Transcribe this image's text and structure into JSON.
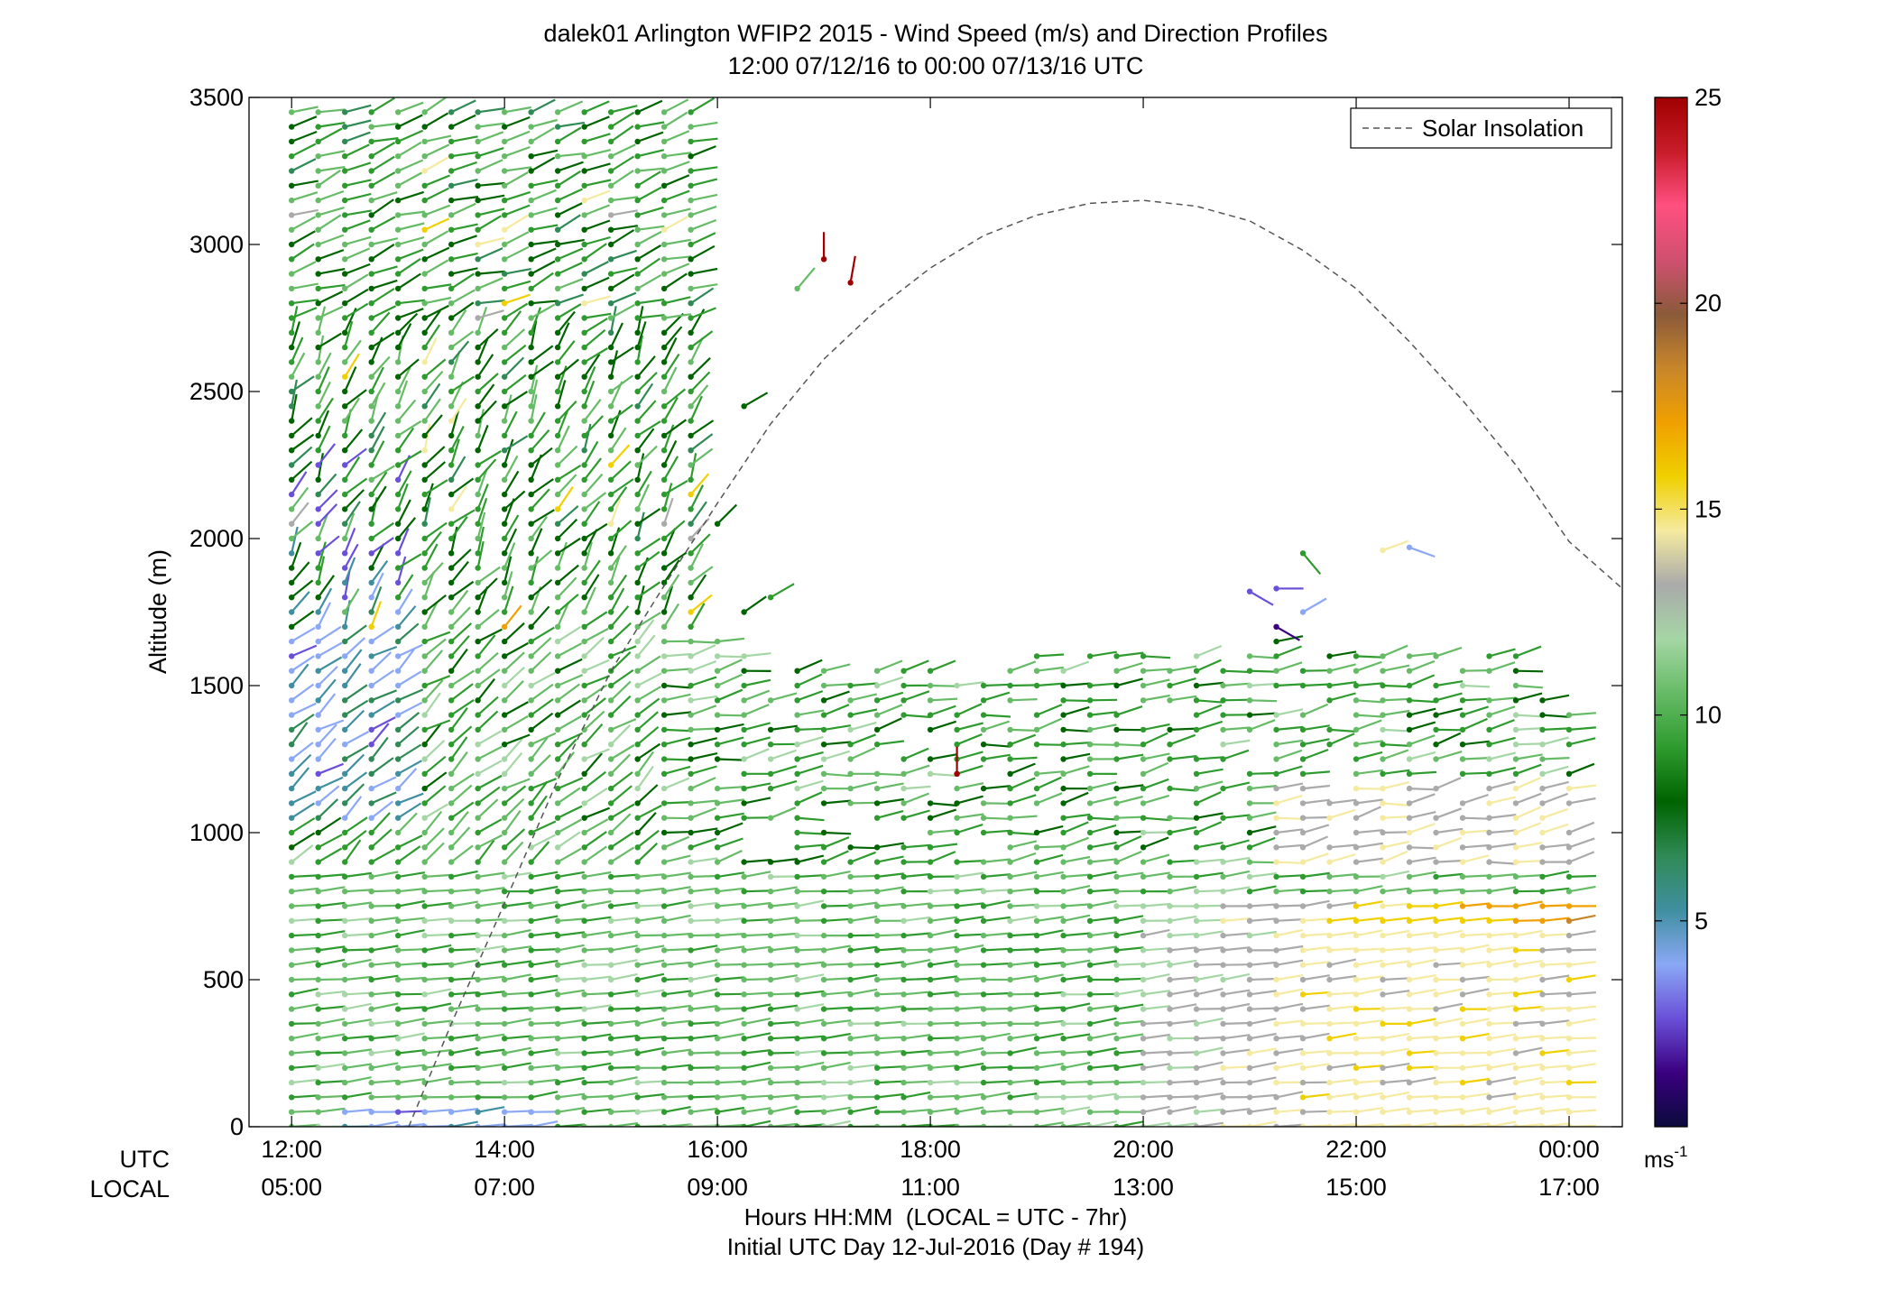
{
  "chart_data": {
    "type": "scatter",
    "title": "dalek01 Arlington WFIP2 2015 - Wind Speed (m/s) and Direction Profiles",
    "subtitle": "12:00 07/12/16 to 00:00 07/13/16  UTC",
    "ylabel": "Altitude (m)",
    "ylim": [
      0,
      3500
    ],
    "yticks": [
      0,
      500,
      1000,
      1500,
      2000,
      2500,
      3000,
      3500
    ],
    "xlim": [
      11.6,
      24.5
    ],
    "xticks_hours": [
      12,
      14,
      16,
      18,
      20,
      22,
      24
    ],
    "xtick_utc_labels": [
      "12:00",
      "14:00",
      "16:00",
      "18:00",
      "20:00",
      "22:00",
      "00:00"
    ],
    "xtick_local_labels": [
      "05:00",
      "07:00",
      "09:00",
      "11:00",
      "13:00",
      "15:00",
      "17:00"
    ],
    "utc_row_label": "UTC",
    "local_row_label": "LOCAL",
    "xlabel": "Hours HH:MM  (LOCAL = UTC - 7hr)",
    "xlabel2": "Initial UTC Day 12-Jul-2016 (Day # 194)",
    "legend": {
      "label": "Solar Insolation",
      "placement": "top-right",
      "line_color": "#555555"
    },
    "colorbar": {
      "min": 0,
      "max": 25,
      "ticks": [
        5,
        10,
        15,
        20,
        25
      ],
      "unit_label": "ms",
      "unit_exponent": "-1",
      "colors": [
        "#0a0a3c",
        "#3a0080",
        "#6a50d8",
        "#8aa8f5",
        "#3f8fa0",
        "#2f8a55",
        "#006400",
        "#2e9b2e",
        "#66bb66",
        "#a5d6a5",
        "#aaaaaa",
        "#f5eaa0",
        "#f0d000",
        "#f0a000",
        "#c8862a",
        "#8a5a3a",
        "#d05070",
        "#ff5080",
        "#c81c2a",
        "#a00000"
      ]
    },
    "solar_insolation_curve": {
      "x_hours": [
        13.1,
        13.5,
        14.0,
        14.5,
        15.0,
        15.5,
        16.0,
        16.5,
        17.0,
        17.5,
        18.0,
        18.5,
        19.0,
        19.5,
        20.0,
        20.5,
        21.0,
        21.5,
        22.0,
        22.5,
        23.0,
        23.5,
        24.0,
        24.5
      ],
      "y_m": [
        0,
        350,
        760,
        1180,
        1550,
        1840,
        2120,
        2390,
        2610,
        2780,
        2920,
        3030,
        3100,
        3140,
        3150,
        3130,
        3080,
        2980,
        2850,
        2670,
        2470,
        2250,
        1990,
        1830
      ]
    },
    "barbs_note": "Profiles every 15 min; barbs point toward the wind direction, colour encodes speed",
    "profile_times_hours": [
      12.0,
      12.25,
      12.5,
      12.75,
      13.0,
      13.25,
      13.5,
      13.75,
      14.0,
      14.25,
      14.5,
      14.75,
      15.0,
      15.25,
      15.5,
      15.75,
      16.0,
      16.25,
      16.5,
      16.75,
      17.0,
      17.25,
      17.5,
      17.75,
      18.0,
      18.25,
      18.5,
      18.75,
      19.0,
      19.25,
      19.5,
      19.75,
      20.0,
      20.25,
      20.5,
      20.75,
      21.0,
      21.25,
      21.5,
      21.75,
      22.0,
      22.25,
      22.5,
      22.75,
      23.0,
      23.25,
      23.5,
      23.75,
      24.0
    ],
    "profile_top_altitude_m": [
      3450,
      3450,
      3450,
      3450,
      3450,
      3450,
      3450,
      3450,
      3450,
      3450,
      3450,
      3450,
      3450,
      3450,
      3450,
      3450,
      1650,
      1600,
      1550,
      1600,
      1550,
      1520,
      1550,
      1550,
      1550,
      1520,
      1550,
      1550,
      1600,
      1550,
      1600,
      1600,
      1600,
      1600,
      1600,
      1620,
      1620,
      1650,
      1620,
      1620,
      1620,
      1620,
      1620,
      1620,
      1620,
      1620,
      1600,
      1450,
      1400
    ],
    "isolated_barbs": [
      {
        "x": 16.0,
        "y": 2050,
        "speed": 8,
        "dir_deg": 225
      },
      {
        "x": 16.25,
        "y": 2450,
        "speed": 8,
        "dir_deg": 240
      },
      {
        "x": 16.75,
        "y": 2850,
        "speed": 10,
        "dir_deg": 220
      },
      {
        "x": 17.0,
        "y": 2950,
        "speed": 25,
        "dir_deg": 180
      },
      {
        "x": 17.25,
        "y": 2870,
        "speed": 25,
        "dir_deg": 190
      },
      {
        "x": 16.25,
        "y": 1750,
        "speed": 8,
        "dir_deg": 235
      },
      {
        "x": 16.5,
        "y": 1800,
        "speed": 9,
        "dir_deg": 240
      },
      {
        "x": 18.25,
        "y": 1200,
        "speed": 25,
        "dir_deg": 180
      },
      {
        "x": 21.0,
        "y": 1820,
        "speed": 3,
        "dir_deg": 300
      },
      {
        "x": 21.25,
        "y": 1830,
        "speed": 2,
        "dir_deg": 270
      },
      {
        "x": 21.5,
        "y": 1950,
        "speed": 9,
        "dir_deg": 320
      },
      {
        "x": 22.25,
        "y": 1960,
        "speed": 14,
        "dir_deg": 250
      },
      {
        "x": 22.5,
        "y": 1970,
        "speed": 4,
        "dir_deg": 290
      },
      {
        "x": 21.25,
        "y": 1700,
        "speed": 1,
        "dir_deg": 300
      },
      {
        "x": 21.5,
        "y": 1750,
        "speed": 4,
        "dir_deg": 240
      }
    ]
  }
}
